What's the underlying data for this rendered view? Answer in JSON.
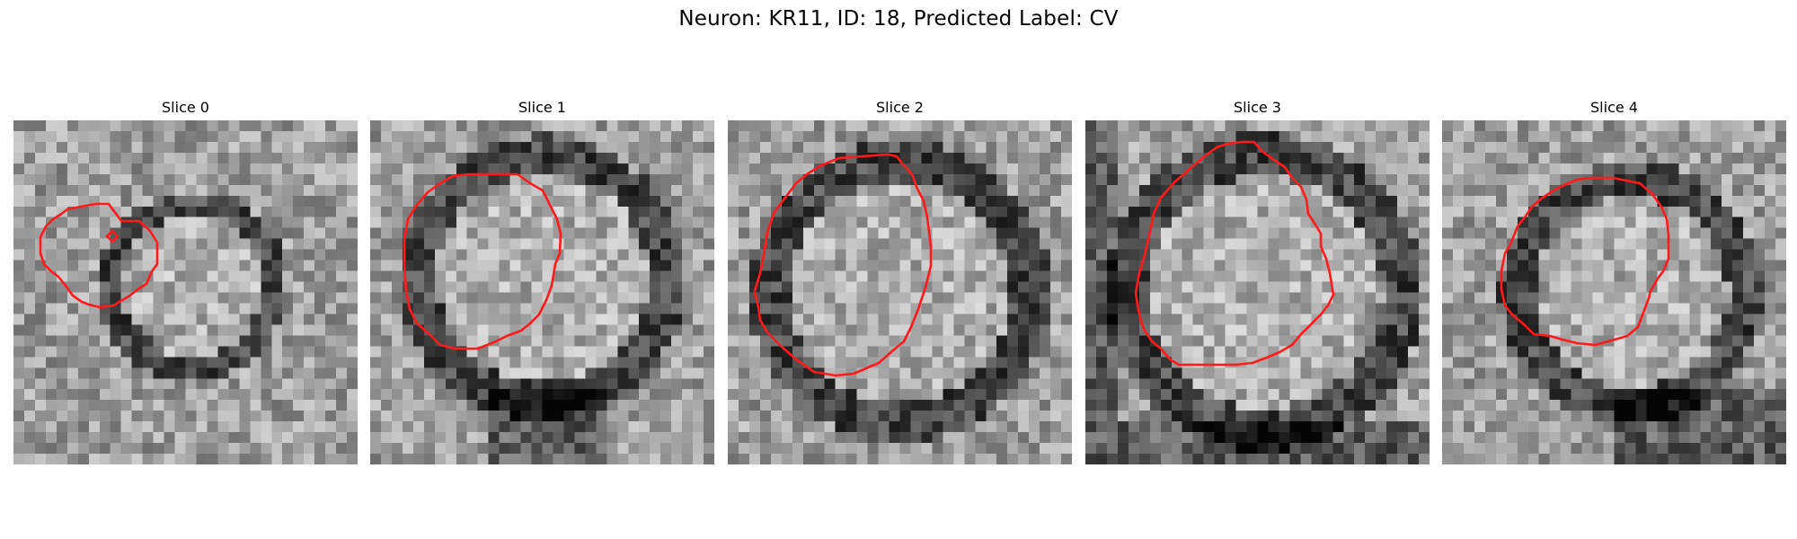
{
  "figure": {
    "title": "Neuron: KR11, ID: 18, Predicted Label: CV"
  },
  "panels": [
    {
      "title": "Slice 0"
    },
    {
      "title": "Slice 1"
    },
    {
      "title": "Slice 2"
    },
    {
      "title": "Slice 3"
    },
    {
      "title": "Slice 4"
    }
  ],
  "colors": {
    "contour": "#ff1a1a",
    "colormap": "gray"
  }
}
